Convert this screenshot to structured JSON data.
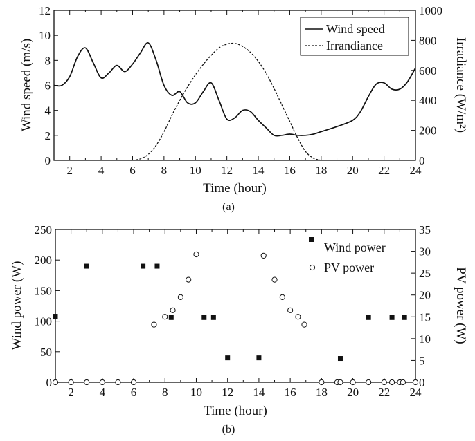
{
  "chart_data": [
    {
      "id": "a",
      "type": "line",
      "caption": "(a)",
      "xlabel": "Time (hour)",
      "ylabel_left": "Wind speed (m/s)",
      "ylabel_right": "Irradiance (W/m²)",
      "xlim": [
        1,
        24
      ],
      "xticks": [
        2,
        4,
        6,
        8,
        10,
        12,
        14,
        16,
        18,
        20,
        22,
        24
      ],
      "ylim_left": [
        0,
        12
      ],
      "yticks_left": [
        0,
        2,
        4,
        6,
        8,
        10,
        12
      ],
      "ylim_right": [
        0,
        1000
      ],
      "yticks_right": [
        0,
        200,
        400,
        600,
        800,
        1000
      ],
      "legend_position": "top-right",
      "series": [
        {
          "name": "Wind speed",
          "axis": "left",
          "style": "solid",
          "x": [
            1,
            1.5,
            2,
            2.5,
            3,
            3.5,
            4,
            4.5,
            5,
            5.5,
            6,
            6.5,
            7,
            7.5,
            8,
            8.5,
            9,
            9.5,
            10,
            10.5,
            11,
            11.5,
            12,
            12.5,
            13,
            13.5,
            14,
            14.5,
            15,
            15.5,
            16,
            16.5,
            17,
            17.5,
            18,
            19,
            20,
            20.5,
            21,
            21.5,
            22,
            22.5,
            23,
            23.5,
            24
          ],
          "values": [
            6.0,
            6.0,
            6.7,
            8.3,
            9.0,
            7.8,
            6.6,
            7.0,
            7.6,
            7.1,
            7.7,
            8.6,
            9.4,
            8.0,
            6.0,
            5.2,
            5.5,
            4.6,
            4.6,
            5.5,
            6.2,
            4.8,
            3.3,
            3.4,
            4.0,
            3.9,
            3.2,
            2.6,
            2.0,
            2.0,
            2.1,
            2.0,
            2.0,
            2.1,
            2.3,
            2.7,
            3.2,
            3.9,
            5.1,
            6.1,
            6.2,
            5.7,
            5.7,
            6.3,
            7.4
          ]
        },
        {
          "name": "Irrandiance",
          "axis": "right",
          "style": "dashed",
          "x": [
            6,
            6.5,
            7,
            7.5,
            8,
            8.5,
            9,
            9.5,
            10,
            10.5,
            11,
            11.5,
            12,
            12.5,
            13,
            13.5,
            14,
            14.5,
            15,
            15.5,
            16,
            16.5,
            17,
            17.5,
            18
          ],
          "values": [
            0,
            10,
            40,
            100,
            190,
            300,
            400,
            490,
            570,
            640,
            700,
            750,
            775,
            780,
            760,
            720,
            660,
            580,
            480,
            370,
            260,
            150,
            60,
            15,
            0
          ]
        }
      ]
    },
    {
      "id": "b",
      "type": "scatter",
      "caption": "(b)",
      "xlabel": "Time (hour)",
      "ylabel_left": "Wind power (W)",
      "ylabel_right": "PV power (W)",
      "xlim": [
        1,
        24
      ],
      "xticks": [
        2,
        4,
        6,
        8,
        10,
        12,
        14,
        16,
        18,
        20,
        22,
        24
      ],
      "ylim_left": [
        0,
        250
      ],
      "yticks_left": [
        0,
        50,
        100,
        150,
        200,
        250
      ],
      "ylim_right": [
        0,
        35
      ],
      "yticks_right": [
        0,
        5,
        10,
        15,
        20,
        25,
        30,
        35
      ],
      "legend_position": "top-right",
      "series": [
        {
          "name": "Wind power",
          "axis": "left",
          "marker": "filled-square",
          "x": [
            1,
            3,
            6.6,
            7.5,
            8.4,
            10.5,
            11.1,
            12,
            14,
            19.2,
            21,
            22.5,
            23.3
          ],
          "values": [
            108,
            190,
            190,
            190,
            106,
            106,
            106,
            40,
            40,
            39,
            106,
            106,
            106
          ]
        },
        {
          "name": "PV power",
          "axis": "right",
          "marker": "open-circle",
          "x": [
            1,
            2,
            3,
            4,
            5,
            6,
            7.3,
            8,
            8.5,
            9,
            9.5,
            10,
            14.3,
            15,
            15.5,
            16,
            16.5,
            16.9,
            18,
            19,
            19.2,
            20,
            21,
            22,
            22.5,
            23,
            23.2,
            24
          ],
          "values": [
            0,
            0,
            0,
            0,
            0,
            0,
            13.2,
            15,
            16.5,
            19.5,
            23.5,
            29.3,
            29,
            23.5,
            19.5,
            16.5,
            15,
            13.2,
            0,
            0,
            0,
            0,
            0,
            0,
            0,
            0,
            0,
            0
          ]
        }
      ]
    }
  ]
}
